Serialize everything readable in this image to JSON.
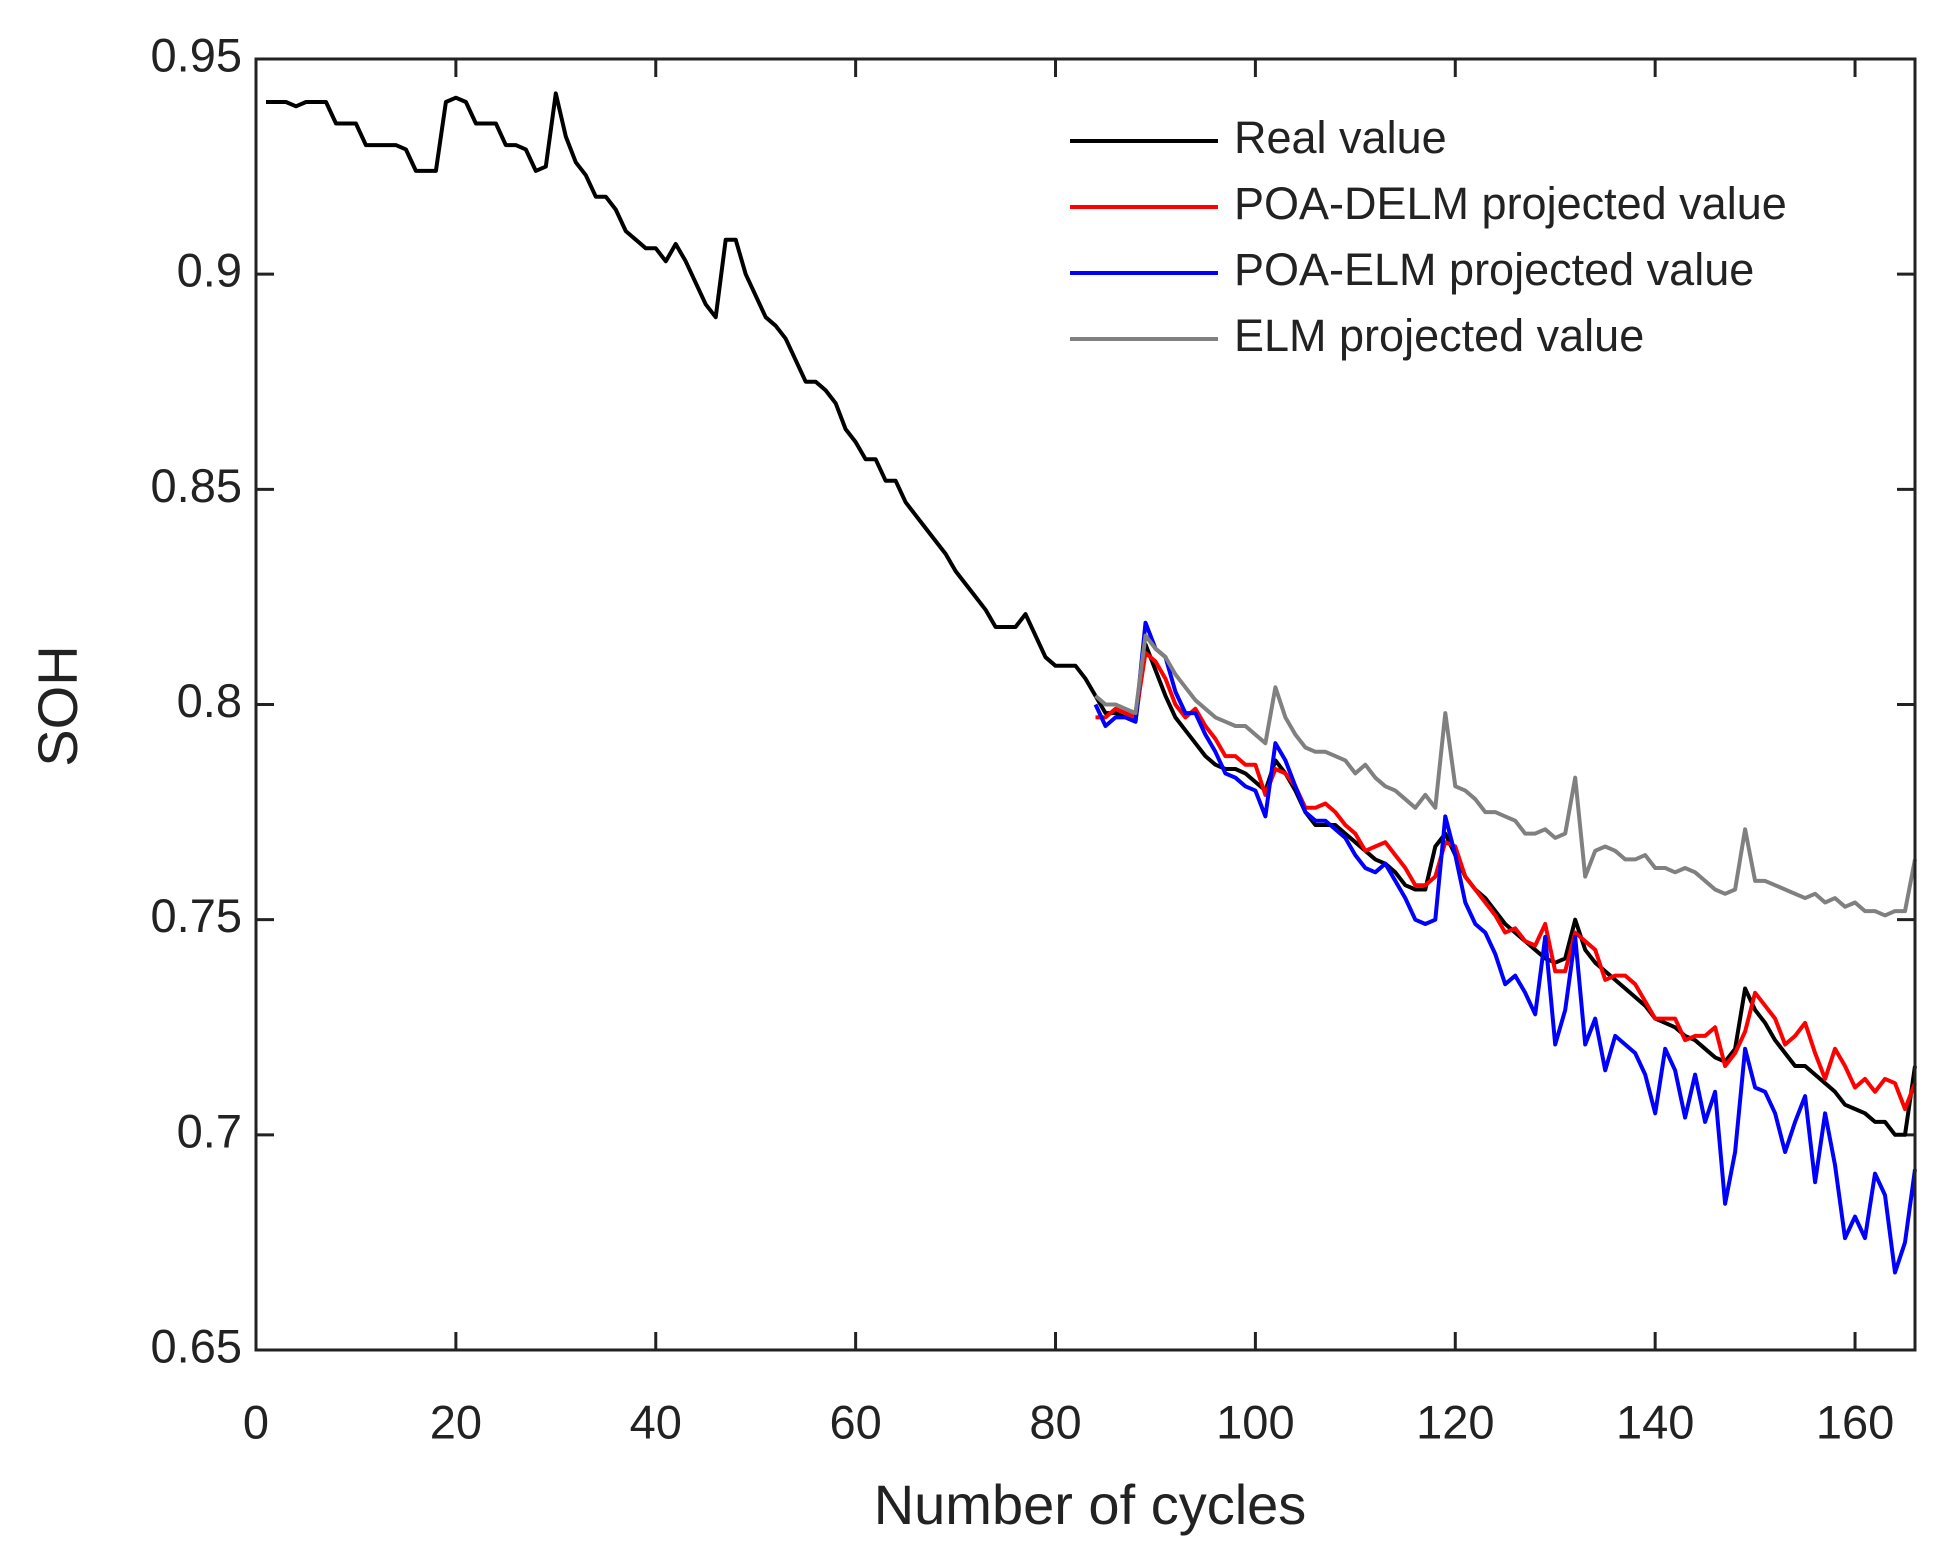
{
  "chart_data": {
    "type": "line",
    "xlabel": "Number of cycles",
    "ylabel": "SOH",
    "xlim": [
      0,
      166
    ],
    "ylim": [
      0.65,
      0.95
    ],
    "xticks": [
      0,
      20,
      40,
      60,
      80,
      100,
      120,
      140,
      160
    ],
    "yticks": [
      0.65,
      0.7,
      0.75,
      0.8,
      0.85,
      0.9,
      0.95
    ],
    "legend": "northeast",
    "grid": false,
    "x": [
      1,
      2,
      3,
      4,
      5,
      6,
      7,
      8,
      9,
      10,
      11,
      12,
      13,
      14,
      15,
      16,
      17,
      18,
      19,
      20,
      21,
      22,
      23,
      24,
      25,
      26,
      27,
      28,
      29,
      30,
      31,
      32,
      33,
      34,
      35,
      36,
      37,
      38,
      39,
      40,
      41,
      42,
      43,
      44,
      45,
      46,
      47,
      48,
      49,
      50,
      51,
      52,
      53,
      54,
      55,
      56,
      57,
      58,
      59,
      60,
      61,
      62,
      63,
      64,
      65,
      66,
      67,
      68,
      69,
      70,
      71,
      72,
      73,
      74,
      75,
      76,
      77,
      78,
      79,
      80,
      81,
      82,
      83,
      84,
      85,
      86,
      87,
      88,
      89,
      90,
      91,
      92,
      93,
      94,
      95,
      96,
      97,
      98,
      99,
      100,
      101,
      102,
      103,
      104,
      105,
      106,
      107,
      108,
      109,
      110,
      111,
      112,
      113,
      114,
      115,
      116,
      117,
      118,
      119,
      120,
      121,
      122,
      123,
      124,
      125,
      126,
      127,
      128,
      129,
      130,
      131,
      132,
      133,
      134,
      135,
      136,
      137,
      138,
      139,
      140,
      141,
      142,
      143,
      144,
      145,
      146,
      147,
      148,
      149,
      150,
      151,
      152,
      153,
      154,
      155,
      156,
      157,
      158,
      159,
      160,
      161,
      162,
      163,
      164,
      165,
      166
    ],
    "series": [
      {
        "name": "Real value",
        "color": "#000000",
        "values": [
          0.94,
          0.94,
          0.94,
          0.939,
          0.94,
          0.94,
          0.94,
          0.935,
          0.935,
          0.935,
          0.93,
          0.93,
          0.93,
          0.93,
          0.929,
          0.924,
          0.924,
          0.924,
          0.94,
          0.941,
          0.94,
          0.935,
          0.935,
          0.935,
          0.93,
          0.93,
          0.929,
          0.924,
          0.925,
          0.942,
          0.932,
          0.926,
          0.923,
          0.918,
          0.918,
          0.915,
          0.91,
          0.908,
          0.906,
          0.906,
          0.903,
          0.907,
          0.903,
          0.898,
          0.893,
          0.89,
          0.908,
          0.908,
          0.9,
          0.895,
          0.89,
          0.888,
          0.885,
          0.88,
          0.875,
          0.875,
          0.873,
          0.87,
          0.864,
          0.861,
          0.857,
          0.857,
          0.852,
          0.852,
          0.847,
          0.844,
          0.841,
          0.838,
          0.835,
          0.831,
          0.828,
          0.825,
          0.822,
          0.818,
          0.818,
          0.818,
          0.821,
          0.816,
          0.811,
          0.809,
          0.809,
          0.809,
          0.806,
          0.802,
          0.798,
          0.798,
          0.797,
          0.796,
          0.814,
          0.808,
          0.802,
          0.797,
          0.794,
          0.791,
          0.788,
          0.786,
          0.785,
          0.785,
          0.784,
          0.782,
          0.78,
          0.787,
          0.784,
          0.78,
          0.775,
          0.772,
          0.772,
          0.772,
          0.77,
          0.768,
          0.766,
          0.764,
          0.763,
          0.761,
          0.758,
          0.757,
          0.757,
          0.767,
          0.77,
          0.765,
          0.76,
          0.757,
          0.755,
          0.752,
          0.749,
          0.747,
          0.745,
          0.743,
          0.741,
          0.74,
          0.741,
          0.75,
          0.743,
          0.74,
          0.738,
          0.736,
          0.734,
          0.732,
          0.73,
          0.727,
          0.726,
          0.725,
          0.723,
          0.722,
          0.72,
          0.718,
          0.717,
          0.72,
          0.734,
          0.729,
          0.726,
          0.722,
          0.719,
          0.716,
          0.716,
          0.714,
          0.712,
          0.71,
          0.707,
          0.706,
          0.705,
          0.703,
          0.703,
          0.7,
          0.7,
          0.716
        ]
      },
      {
        "name": "POA-DELM projected value",
        "color": "#ff0000",
        "values": [
          null,
          null,
          null,
          null,
          null,
          null,
          null,
          null,
          null,
          null,
          null,
          null,
          null,
          null,
          null,
          null,
          null,
          null,
          null,
          null,
          null,
          null,
          null,
          null,
          null,
          null,
          null,
          null,
          null,
          null,
          null,
          null,
          null,
          null,
          null,
          null,
          null,
          null,
          null,
          null,
          null,
          null,
          null,
          null,
          null,
          null,
          null,
          null,
          null,
          null,
          null,
          null,
          null,
          null,
          null,
          null,
          null,
          null,
          null,
          null,
          null,
          null,
          null,
          null,
          null,
          null,
          null,
          null,
          null,
          null,
          null,
          null,
          null,
          null,
          null,
          null,
          null,
          null,
          null,
          null,
          null,
          null,
          null,
          0.797,
          0.797,
          0.799,
          0.798,
          0.797,
          0.812,
          0.81,
          0.806,
          0.8,
          0.797,
          0.799,
          0.795,
          0.792,
          0.788,
          0.788,
          0.786,
          0.786,
          0.779,
          0.785,
          0.784,
          0.781,
          0.776,
          0.776,
          0.777,
          0.775,
          0.772,
          0.77,
          0.766,
          0.767,
          0.768,
          0.765,
          0.762,
          0.758,
          0.758,
          0.76,
          0.768,
          0.767,
          0.76,
          0.757,
          0.754,
          0.751,
          0.747,
          0.748,
          0.745,
          0.744,
          0.749,
          0.738,
          0.738,
          0.747,
          0.745,
          0.743,
          0.736,
          0.737,
          0.737,
          0.735,
          0.731,
          0.727,
          0.727,
          0.727,
          0.722,
          0.723,
          0.723,
          0.725,
          0.716,
          0.719,
          0.724,
          0.733,
          0.73,
          0.727,
          0.721,
          0.723,
          0.726,
          0.719,
          0.713,
          0.72,
          0.716,
          0.711,
          0.713,
          0.71,
          0.713,
          0.712,
          0.706,
          0.712
        ]
      },
      {
        "name": "POA-ELM projected value",
        "color": "#0000ff",
        "values": [
          null,
          null,
          null,
          null,
          null,
          null,
          null,
          null,
          null,
          null,
          null,
          null,
          null,
          null,
          null,
          null,
          null,
          null,
          null,
          null,
          null,
          null,
          null,
          null,
          null,
          null,
          null,
          null,
          null,
          null,
          null,
          null,
          null,
          null,
          null,
          null,
          null,
          null,
          null,
          null,
          null,
          null,
          null,
          null,
          null,
          null,
          null,
          null,
          null,
          null,
          null,
          null,
          null,
          null,
          null,
          null,
          null,
          null,
          null,
          null,
          null,
          null,
          null,
          null,
          null,
          null,
          null,
          null,
          null,
          null,
          null,
          null,
          null,
          null,
          null,
          null,
          null,
          null,
          null,
          null,
          null,
          null,
          null,
          0.8,
          0.795,
          0.797,
          0.797,
          0.796,
          0.819,
          0.813,
          0.811,
          0.803,
          0.798,
          0.798,
          0.793,
          0.789,
          0.784,
          0.783,
          0.781,
          0.78,
          0.774,
          0.791,
          0.787,
          0.781,
          0.775,
          0.773,
          0.773,
          0.771,
          0.769,
          0.765,
          0.762,
          0.761,
          0.763,
          0.759,
          0.755,
          0.75,
          0.749,
          0.75,
          0.774,
          0.765,
          0.754,
          0.749,
          0.747,
          0.742,
          0.735,
          0.737,
          0.733,
          0.728,
          0.746,
          0.721,
          0.729,
          0.746,
          0.721,
          0.727,
          0.715,
          0.723,
          0.721,
          0.719,
          0.714,
          0.705,
          0.72,
          0.715,
          0.704,
          0.714,
          0.703,
          0.71,
          0.684,
          0.696,
          0.72,
          0.711,
          0.71,
          0.705,
          0.696,
          0.703,
          0.709,
          0.689,
          0.705,
          0.693,
          0.676,
          0.681,
          0.676,
          0.691,
          0.686,
          0.668,
          0.675,
          0.692
        ]
      },
      {
        "name": "ELM projected value",
        "color": "#808080",
        "values": [
          null,
          null,
          null,
          null,
          null,
          null,
          null,
          null,
          null,
          null,
          null,
          null,
          null,
          null,
          null,
          null,
          null,
          null,
          null,
          null,
          null,
          null,
          null,
          null,
          null,
          null,
          null,
          null,
          null,
          null,
          null,
          null,
          null,
          null,
          null,
          null,
          null,
          null,
          null,
          null,
          null,
          null,
          null,
          null,
          null,
          null,
          null,
          null,
          null,
          null,
          null,
          null,
          null,
          null,
          null,
          null,
          null,
          null,
          null,
          null,
          null,
          null,
          null,
          null,
          null,
          null,
          null,
          null,
          null,
          null,
          null,
          null,
          null,
          null,
          null,
          null,
          null,
          null,
          null,
          null,
          null,
          null,
          null,
          0.802,
          0.8,
          0.8,
          0.799,
          0.798,
          0.816,
          0.813,
          0.811,
          0.807,
          0.804,
          0.801,
          0.799,
          0.797,
          0.796,
          0.795,
          0.795,
          0.793,
          0.791,
          0.804,
          0.797,
          0.793,
          0.79,
          0.789,
          0.789,
          0.788,
          0.787,
          0.784,
          0.786,
          0.783,
          0.781,
          0.78,
          0.778,
          0.776,
          0.779,
          0.776,
          0.798,
          0.781,
          0.78,
          0.778,
          0.775,
          0.775,
          0.774,
          0.773,
          0.77,
          0.77,
          0.771,
          0.769,
          0.77,
          0.783,
          0.76,
          0.766,
          0.767,
          0.766,
          0.764,
          0.764,
          0.765,
          0.762,
          0.762,
          0.761,
          0.762,
          0.761,
          0.759,
          0.757,
          0.756,
          0.757,
          0.771,
          0.759,
          0.759,
          0.758,
          0.757,
          0.756,
          0.755,
          0.756,
          0.754,
          0.755,
          0.753,
          0.754,
          0.752,
          0.752,
          0.751,
          0.752,
          0.752,
          0.764
        ]
      }
    ]
  }
}
